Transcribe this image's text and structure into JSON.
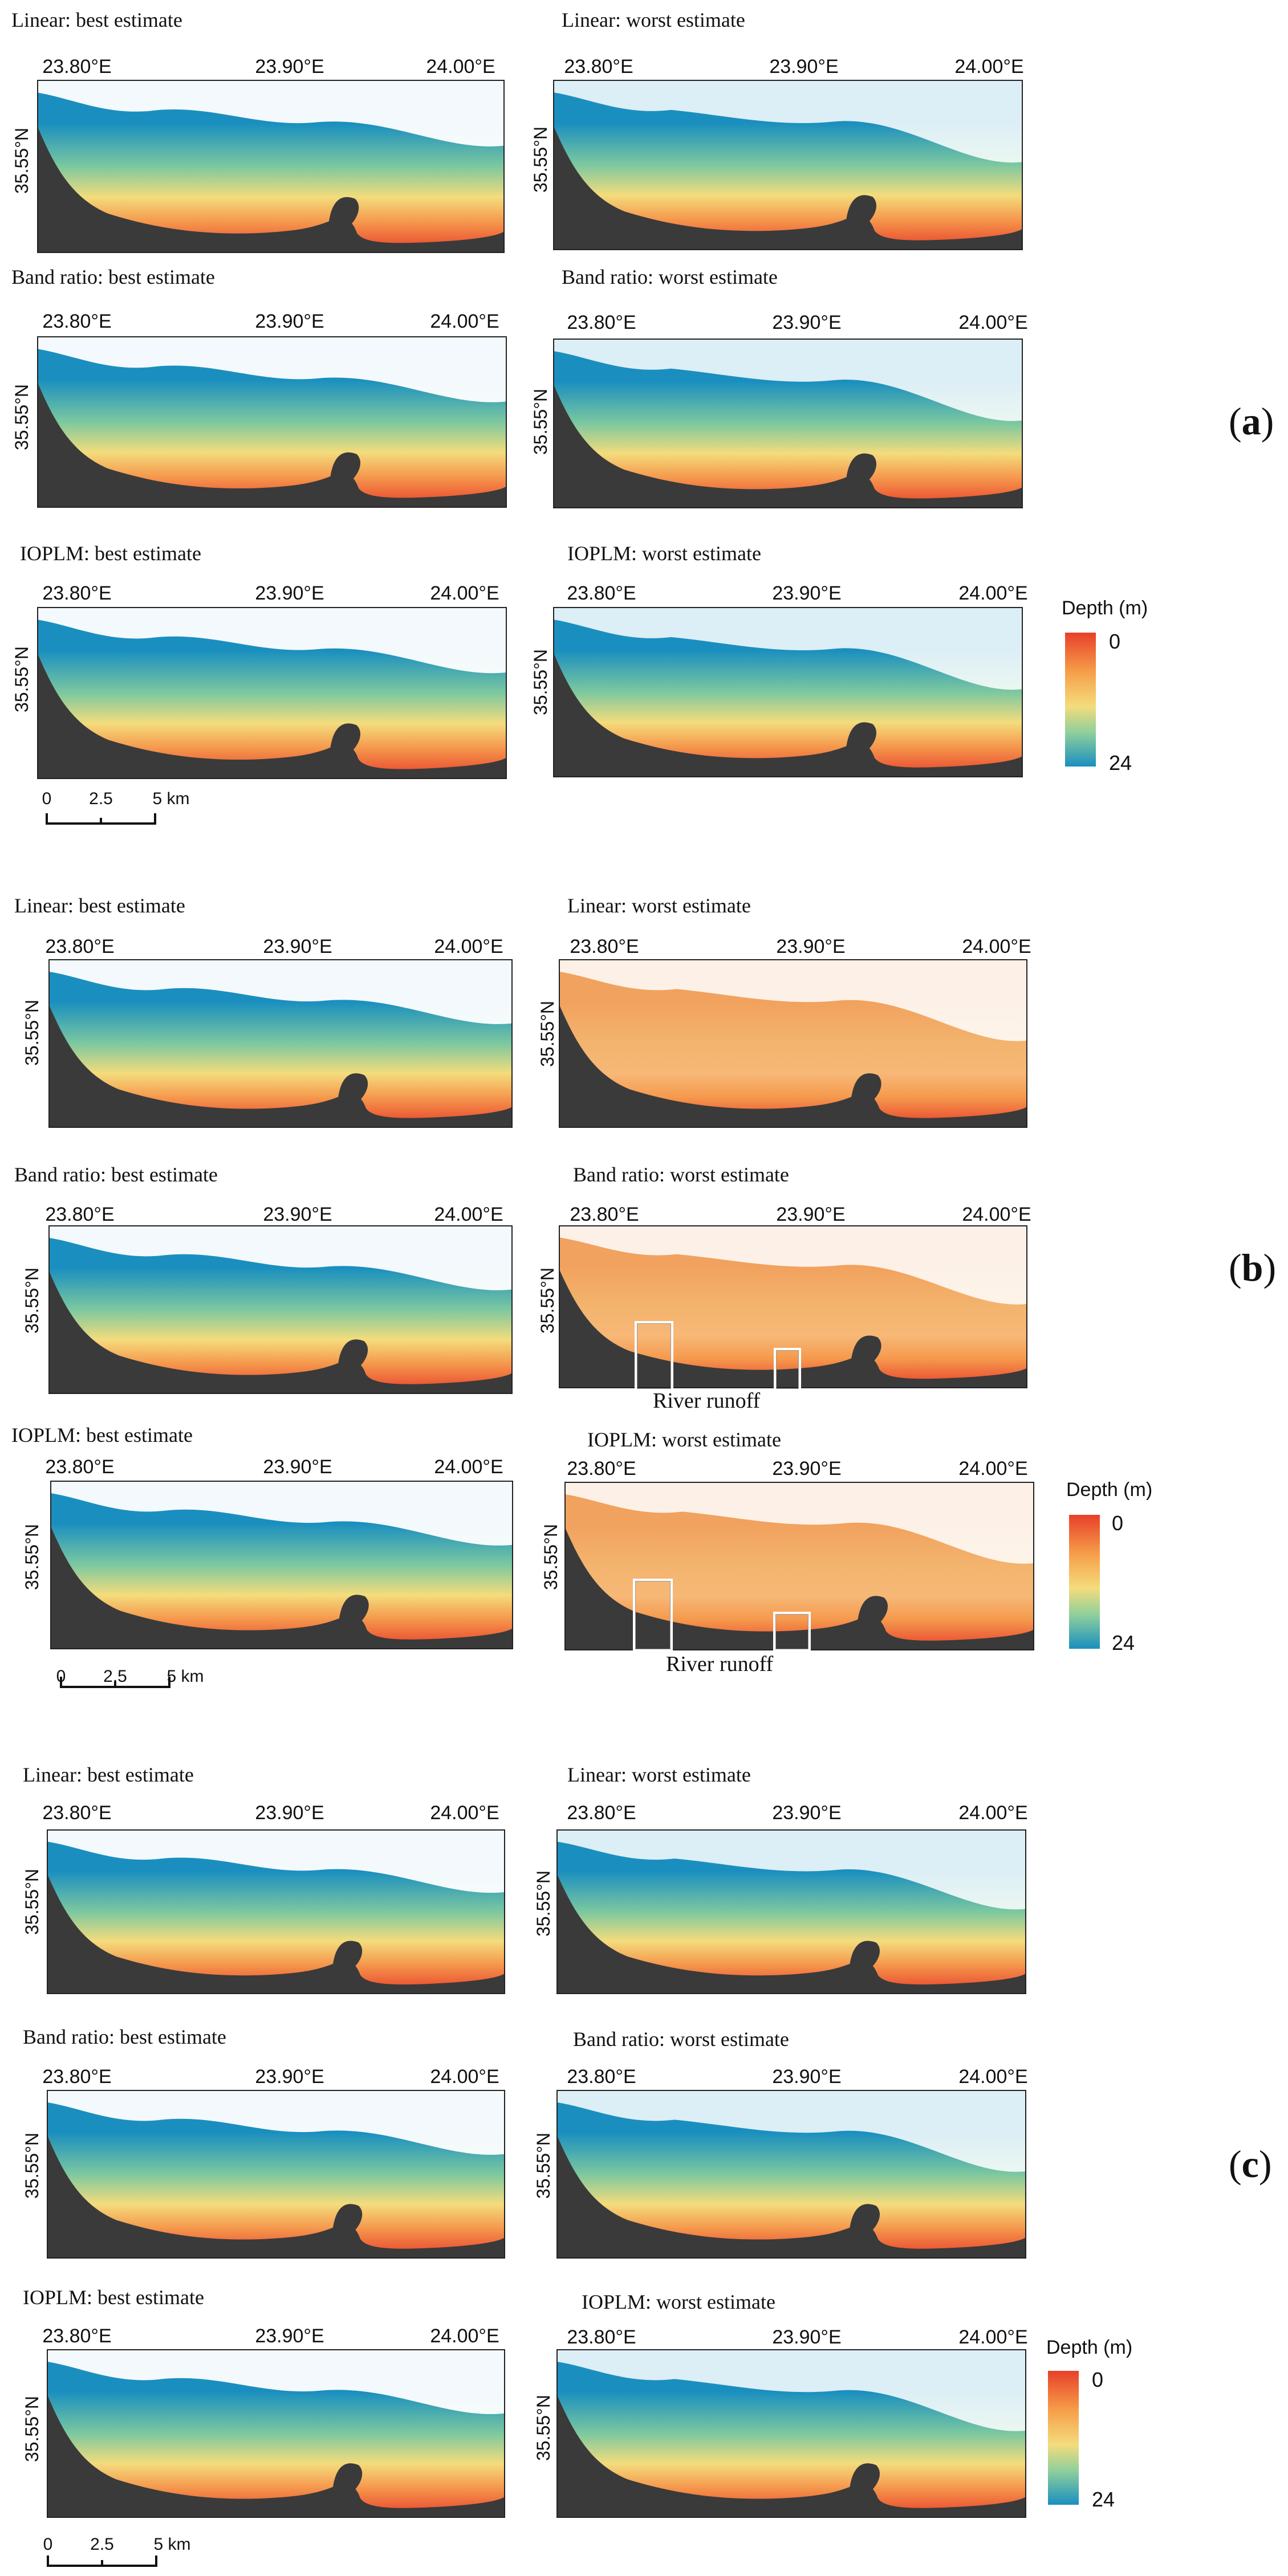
{
  "lon_ticks": [
    "23.80°E",
    "23.90°E",
    "24.00°E"
  ],
  "lat_tick": "35.55°N",
  "colors": {
    "shallow": "#e8402a",
    "mid": "#f4dc7c",
    "deep": "#1a8fbf",
    "land": "#3a3a3a",
    "nodata": "#ffffff"
  },
  "groups": [
    {
      "label_paren_open": "(",
      "label": "a",
      "label_paren_close": ")",
      "panels": [
        {
          "title": "Linear: best estimate"
        },
        {
          "title": "Linear: worst estimate"
        },
        {
          "title": "Band ratio: best estimate"
        },
        {
          "title": "Band ratio: worst estimate"
        },
        {
          "title": "IOPLM: best estimate"
        },
        {
          "title": "IOPLM: worst estimate"
        }
      ]
    },
    {
      "label_paren_open": "(",
      "label": "b",
      "label_paren_close": ")",
      "panels": [
        {
          "title": "Linear: best estimate"
        },
        {
          "title": "Linear: worst estimate"
        },
        {
          "title": "Band ratio: best estimate"
        },
        {
          "title": "Band ratio: worst estimate",
          "annotation": "River runoff"
        },
        {
          "title": "IOPLM: best estimate"
        },
        {
          "title": "IOPLM: worst estimate",
          "annotation": "River runoff"
        }
      ]
    },
    {
      "label_paren_open": "(",
      "label": "c",
      "label_paren_close": ")",
      "panels": [
        {
          "title": "Linear: best estimate"
        },
        {
          "title": "Linear: worst estimate"
        },
        {
          "title": "Band ratio: best estimate"
        },
        {
          "title": "Band ratio: worst estimate"
        },
        {
          "title": "IOPLM: best estimate"
        },
        {
          "title": "IOPLM: worst estimate"
        }
      ]
    }
  ],
  "legend": {
    "title": "Depth (m)",
    "min": "0",
    "max": "24"
  },
  "scalebar": {
    "ticks": [
      "0",
      "2.5",
      "5 km"
    ]
  }
}
